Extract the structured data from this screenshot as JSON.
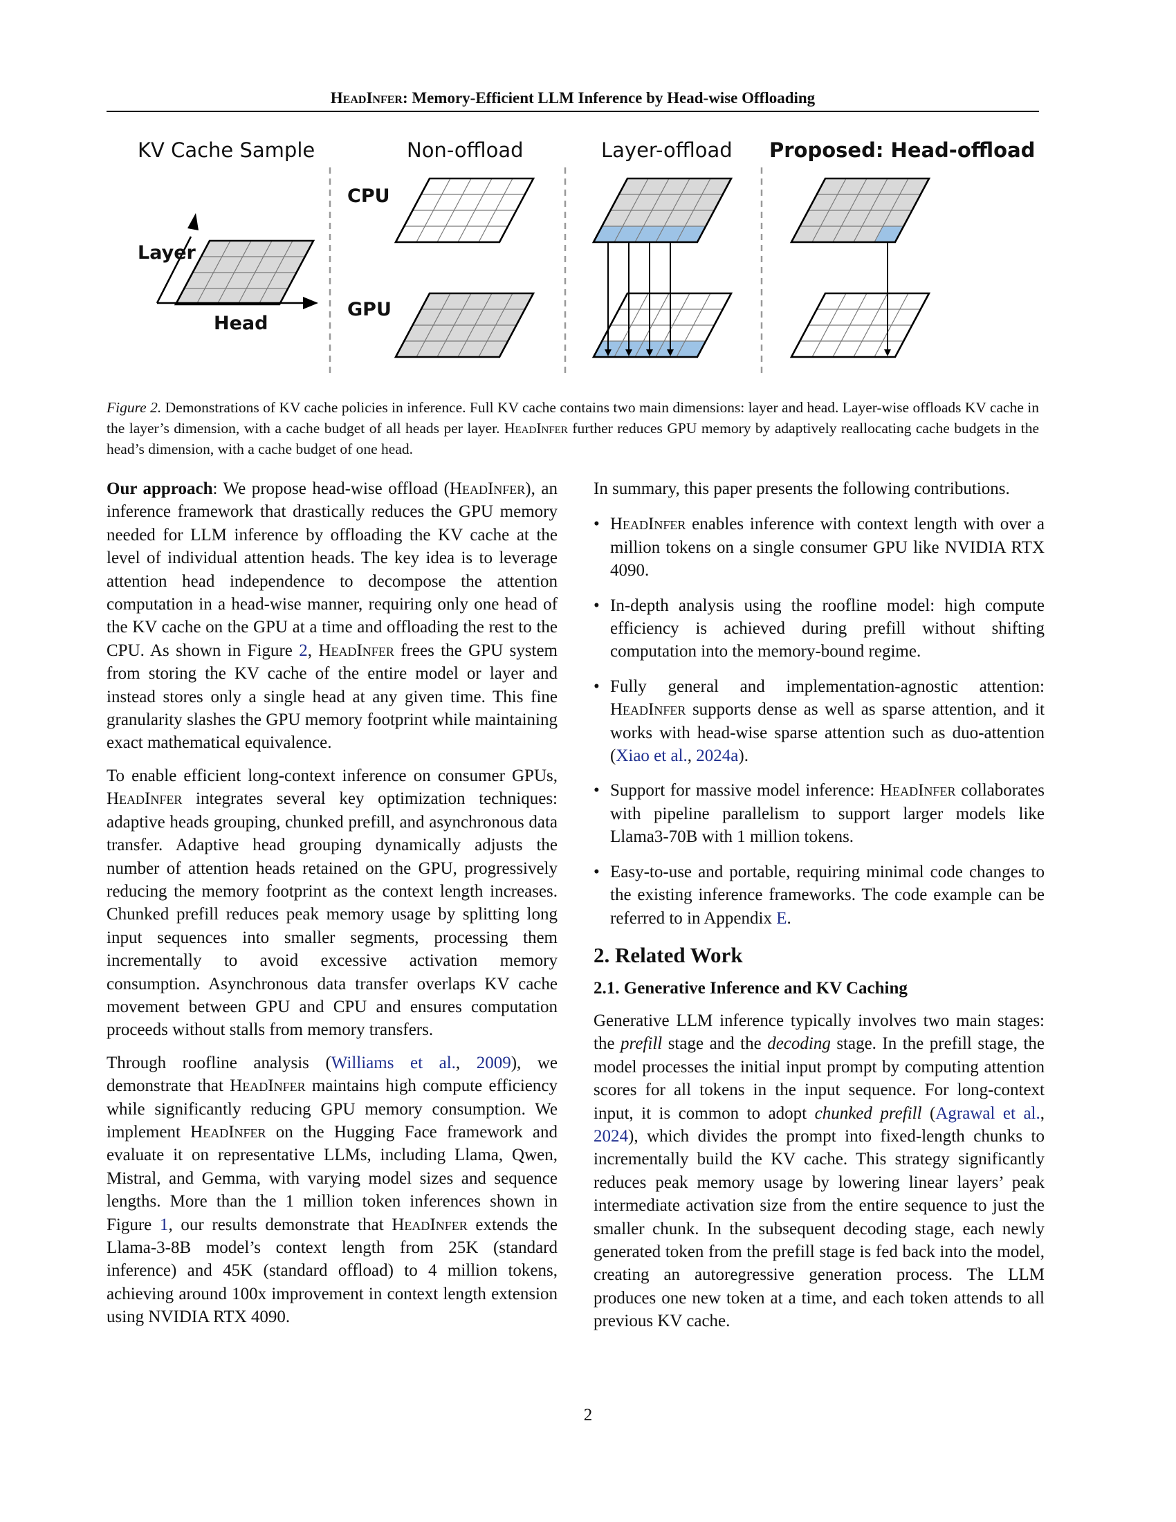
{
  "header": {
    "title_sc": "HeadInfer",
    "title_rest": ": Memory-Efficient LLM Inference by Head-wise Offloading"
  },
  "figure": {
    "panel_titles": [
      "KV Cache Sample",
      "Non-offload",
      "Layer-offload",
      "Proposed: Head-offload"
    ],
    "axis_labels": {
      "layer": "Layer",
      "head": "Head"
    },
    "device_labels": {
      "cpu": "CPU",
      "gpu": "GPU"
    },
    "colors": {
      "grid_fill": "#d9d9d9",
      "highlight": "#9dc3e6",
      "stroke": "#000000",
      "divider": "#999999"
    }
  },
  "caption": {
    "label": "Figure 2.",
    "text_a": " Demonstrations of KV cache policies in inference. Full KV cache contains two main dimensions: layer and head. Layer-wise offloads KV cache in the layer’s dimension, with a cache budget of all heads per layer. ",
    "sc": "HeadInfer",
    "text_b": " further reduces GPU memory by adaptively reallocating cache budgets in the head’s dimension, with a cache budget of one head."
  },
  "left_col": {
    "p1": {
      "lead": "Our approach",
      "a": ":   We propose head-wise offload (",
      "sc1": "HeadInfer",
      "b": "), an inference framework that drastically reduces the GPU memory needed for LLM inference by offloading the KV cache at the level of individual attention heads. The key idea is to leverage attention head independence to decompose the attention computation in a head-wise manner, requiring only one head of the KV cache on the GPU at a time and offloading the rest to the CPU. As shown in Figure ",
      "ref": "2",
      "c": ", ",
      "sc2": "HeadInfer",
      "d": " frees the GPU system from storing the KV cache of the entire model or layer and instead stores only a single head at any given time.  This fine granularity slashes the GPU memory footprint while maintaining exact mathematical equivalence."
    },
    "p2": {
      "a": "To enable efficient long-context inference on consumer GPUs, ",
      "sc": "HeadInfer",
      "b": " integrates several key optimization techniques: adaptive heads grouping, chunked prefill, and asynchronous data transfer.  Adaptive head grouping dynamically adjusts the number of attention heads retained on the GPU, progressively reducing the memory footprint as the context length increases.  Chunked prefill reduces peak memory usage by splitting long input sequences into smaller segments, processing them incrementally to avoid excessive activation memory consumption. Asynchronous data transfer overlaps KV cache movement between GPU and CPU and ensures computation proceeds without stalls from memory transfers."
    },
    "p3": {
      "a": "Through roofline analysis (",
      "cite_author": "Williams et al.",
      "cite_sep": ", ",
      "cite_year": "2009",
      "b": "), we demonstrate that ",
      "sc1": "HeadInfer",
      "c": " maintains high compute efficiency while significantly reducing GPU memory consumption. We implement ",
      "sc2": "HeadInfer",
      "d": " on the Hugging Face framework and evaluate it on representative LLMs, including Llama, Qwen, Mistral, and Gemma, with varying model sizes and sequence lengths. More than the 1 million token inferences shown in Figure ",
      "ref": "1",
      "e": ", our results demonstrate that ",
      "sc3": "HeadInfer",
      "f": " extends the Llama-3-8B model’s context length from 25K (standard inference) and 45K (standard offload) to 4 million tokens, achieving around 100x improvement in context length extension using NVIDIA RTX 4090."
    }
  },
  "right_col": {
    "intro": "In summary, this paper presents the following contributions.",
    "bullet_glyph": "•",
    "b1": {
      "sc": "HeadInfer",
      "text": " enables inference with context length with over a million tokens on a single consumer GPU like NVIDIA RTX 4090."
    },
    "b2": {
      "text": "In-depth analysis using the roofline model:  high compute efficiency is achieved during prefill without shifting computation into the memory-bound regime."
    },
    "b3": {
      "a": "Fully general and implementation-agnostic attention: ",
      "sc": "HeadInfer",
      "b": " supports dense as well as sparse attention, and it works with head-wise sparse attention such as duo-attention (",
      "cite_author": "Xiao et al.",
      "cite_sep": ", ",
      "cite_year": "2024a",
      "c": ")."
    },
    "b4": {
      "a": "Support for massive model inference: ",
      "sc": "HeadInfer",
      "b": " collaborates with pipeline parallelism to support larger models like Llama3-70B with 1 million tokens."
    },
    "b5": {
      "a": "Easy-to-use and portable, requiring minimal code changes to the existing inference frameworks. The code example can be referred to in Appendix ",
      "ref": "E",
      "b": "."
    },
    "section_title": "2. Related Work",
    "subsection_title": "2.1. Generative Inference and KV Caching",
    "p_related": {
      "a": "Generative LLM inference typically involves two main stages:  the ",
      "em1": "prefill",
      "b": " stage and the ",
      "em2": "decoding",
      "c": " stage.  In the prefill stage, the model processes the initial input prompt by computing attention scores for all tokens in the input sequence.  For long-context input, it is common to adopt ",
      "em3": "chunked prefill",
      "d": " (",
      "cite_author": "Agrawal et al.",
      "cite_sep": ", ",
      "cite_year": "2024",
      "e": "), which divides the prompt into fixed-length chunks to incrementally build the KV cache. This strategy significantly reduces peak memory usage by lowering linear layers’ peak intermediate activation size from the entire sequence to just the smaller chunk. In the subsequent decoding stage, each newly generated token from the prefill stage is fed back into the model, creating an autoregressive generation process. The LLM produces one new token at a time, and each token attends to all previous KV cache."
    }
  },
  "page_number": "2"
}
